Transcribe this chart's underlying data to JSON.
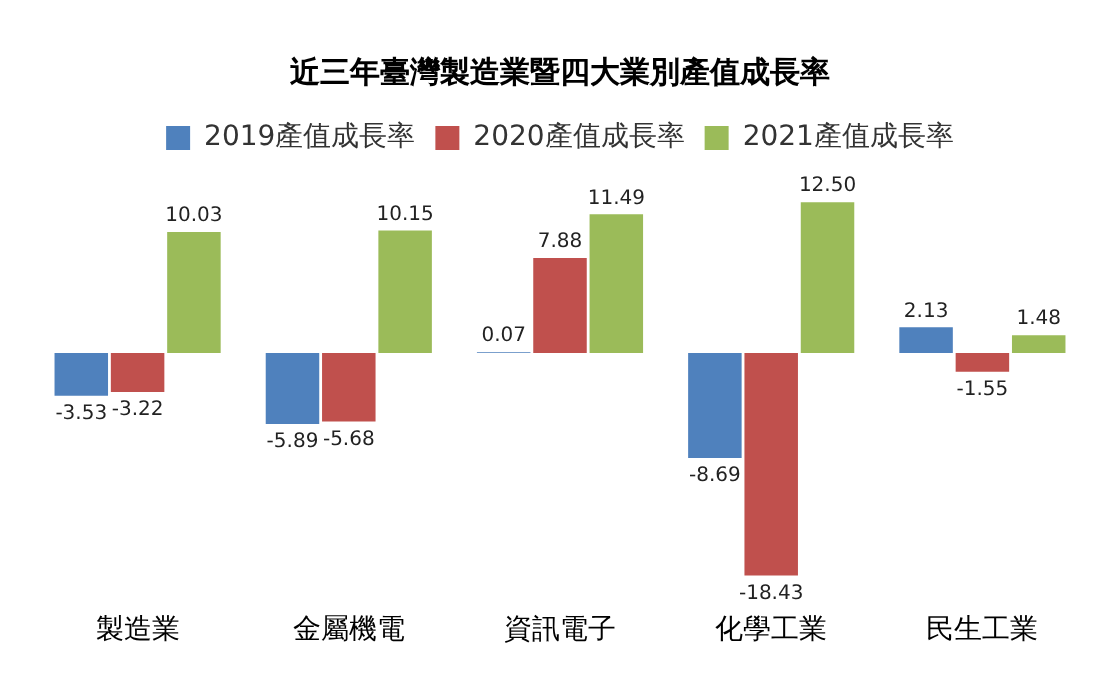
{
  "chart_data": {
    "type": "bar",
    "title": "近三年臺灣製造業暨四大業別產值成長率",
    "categories": [
      "製造業",
      "金屬機電",
      "資訊電子",
      "化學工業",
      "民生工業"
    ],
    "series": [
      {
        "name": "2019產值成長率",
        "color": "#4f81bd",
        "values": [
          -3.53,
          -5.89,
          0.07,
          -8.69,
          2.13
        ],
        "value_labels": [
          "-3.53",
          "-5.89",
          "0.07",
          "-8.69",
          "2.13"
        ]
      },
      {
        "name": "2020產值成長率",
        "color": "#c0504d",
        "values": [
          -3.22,
          -5.68,
          7.88,
          -18.43,
          -1.55
        ],
        "value_labels": [
          "-3.22",
          "-5.68",
          "7.88",
          "-18.43",
          "-1.55"
        ]
      },
      {
        "name": "2021產值成長率",
        "color": "#9bbb59",
        "values": [
          10.03,
          10.15,
          11.49,
          12.5,
          1.48
        ],
        "value_labels": [
          "10.03",
          "10.15",
          "11.49",
          "12.50",
          "1.48"
        ]
      }
    ],
    "tick_labels": "x",
    "grid": false,
    "legend": "top"
  }
}
